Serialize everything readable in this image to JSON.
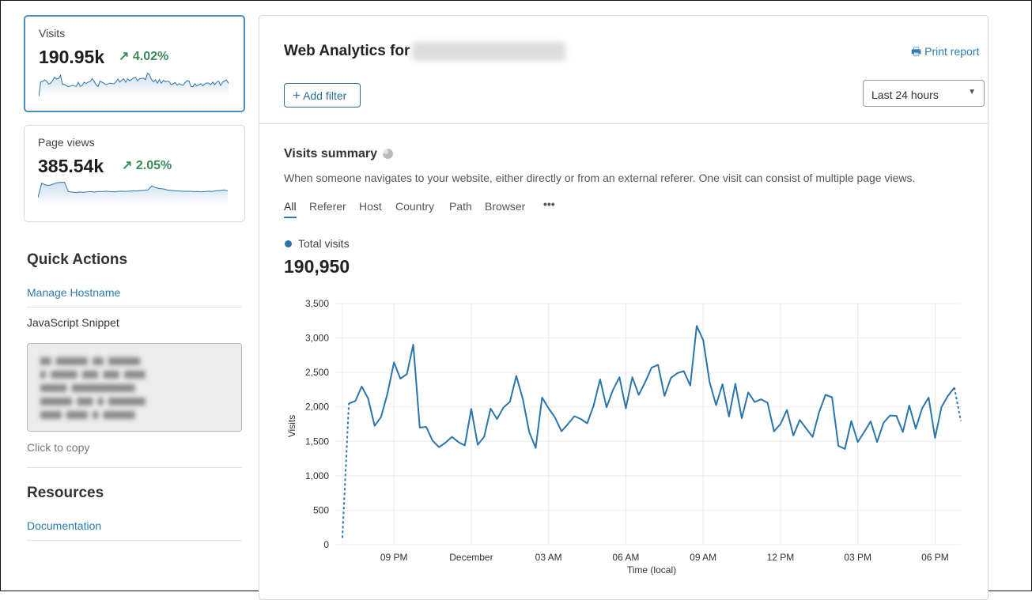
{
  "sidebar": {
    "cards": [
      {
        "label": "Visits",
        "value": "190.95k",
        "change": "4.02%",
        "trend": "up"
      },
      {
        "label": "Page views",
        "value": "385.54k",
        "change": "2.05%",
        "trend": "up"
      }
    ],
    "quick_actions": {
      "title": "Quick Actions",
      "manage_hostname": "Manage Hostname",
      "snippet_label": "JavaScript Snippet",
      "click_to_copy": "Click to copy"
    },
    "resources": {
      "title": "Resources",
      "documentation": "Documentation"
    }
  },
  "header": {
    "title": "Web Analytics for",
    "print_report": "Print report",
    "add_filter": "Add filter",
    "time_range": "Last 24 hours"
  },
  "summary": {
    "title": "Visits summary",
    "description": "When someone navigates to your website, either directly or from an external referer. One visit can consist of multiple page views.",
    "tabs": [
      "All",
      "Referer",
      "Host",
      "Country",
      "Path",
      "Browser"
    ],
    "active_tab": "All",
    "legend": "Total visits",
    "total": "190,950"
  },
  "colors": {
    "accent": "#2c7cb0",
    "positive": "#3b8a5a",
    "line": "#2b75ab"
  },
  "pageviews_sparkline": [
    2000,
    5200,
    4800,
    4700,
    5000,
    5300,
    5400,
    5400,
    3300,
    3200,
    3100,
    3200,
    3150,
    3250,
    3300,
    3200,
    3350,
    3300,
    3400,
    3300,
    3250,
    3350,
    3400,
    3350,
    3400,
    3500,
    3450,
    3550,
    3600,
    3700,
    4600,
    4200,
    4000,
    3900,
    3700,
    3600,
    3500,
    3450,
    3400,
    3350,
    3400,
    3300,
    3350,
    3250,
    3300,
    3400,
    3350,
    3500,
    3550,
    3700,
    3500
  ],
  "chart_data": {
    "type": "line",
    "ylabel": "Visits",
    "xlabel": "Time (local)",
    "ylim": [
      0,
      3500
    ],
    "yticks": [
      "0",
      "500",
      "1,000",
      "1,500",
      "2,000",
      "2,500",
      "3,000",
      "3,500"
    ],
    "xticks": [
      {
        "label": "09 PM",
        "index": 8
      },
      {
        "label": "December",
        "index": 20
      },
      {
        "label": "03 AM",
        "index": 32
      },
      {
        "label": "06 AM",
        "index": 44
      },
      {
        "label": "09 AM",
        "index": 56
      },
      {
        "label": "12 PM",
        "index": 68
      },
      {
        "label": "03 PM",
        "index": 80
      },
      {
        "label": "06 PM",
        "index": 92
      }
    ],
    "interval_minutes": 15,
    "start": "07 PM",
    "grid": true,
    "series": [
      {
        "name": "Total visits",
        "values": [
          100,
          2050,
          2085,
          2295,
          2120,
          1725,
          1855,
          2195,
          2645,
          2410,
          2475,
          2905,
          1700,
          1710,
          1510,
          1415,
          1480,
          1565,
          1490,
          1440,
          1970,
          1450,
          1565,
          1975,
          1825,
          1990,
          2075,
          2450,
          2115,
          1635,
          1405,
          2135,
          1980,
          1845,
          1645,
          1750,
          1865,
          1825,
          1760,
          2020,
          2400,
          1995,
          2245,
          2430,
          1980,
          2430,
          2175,
          2360,
          2570,
          2610,
          2160,
          2420,
          2490,
          2520,
          2310,
          3175,
          2970,
          2360,
          2025,
          2330,
          1860,
          2335,
          1835,
          2210,
          2070,
          2110,
          2060,
          1645,
          1750,
          1955,
          1585,
          1810,
          1685,
          1565,
          1925,
          2175,
          2140,
          1435,
          1390,
          1795,
          1490,
          1635,
          1790,
          1490,
          1770,
          1875,
          1870,
          1635,
          2020,
          1685,
          1980,
          2135,
          1550,
          2000,
          2160,
          2280,
          1795
        ]
      }
    ]
  }
}
